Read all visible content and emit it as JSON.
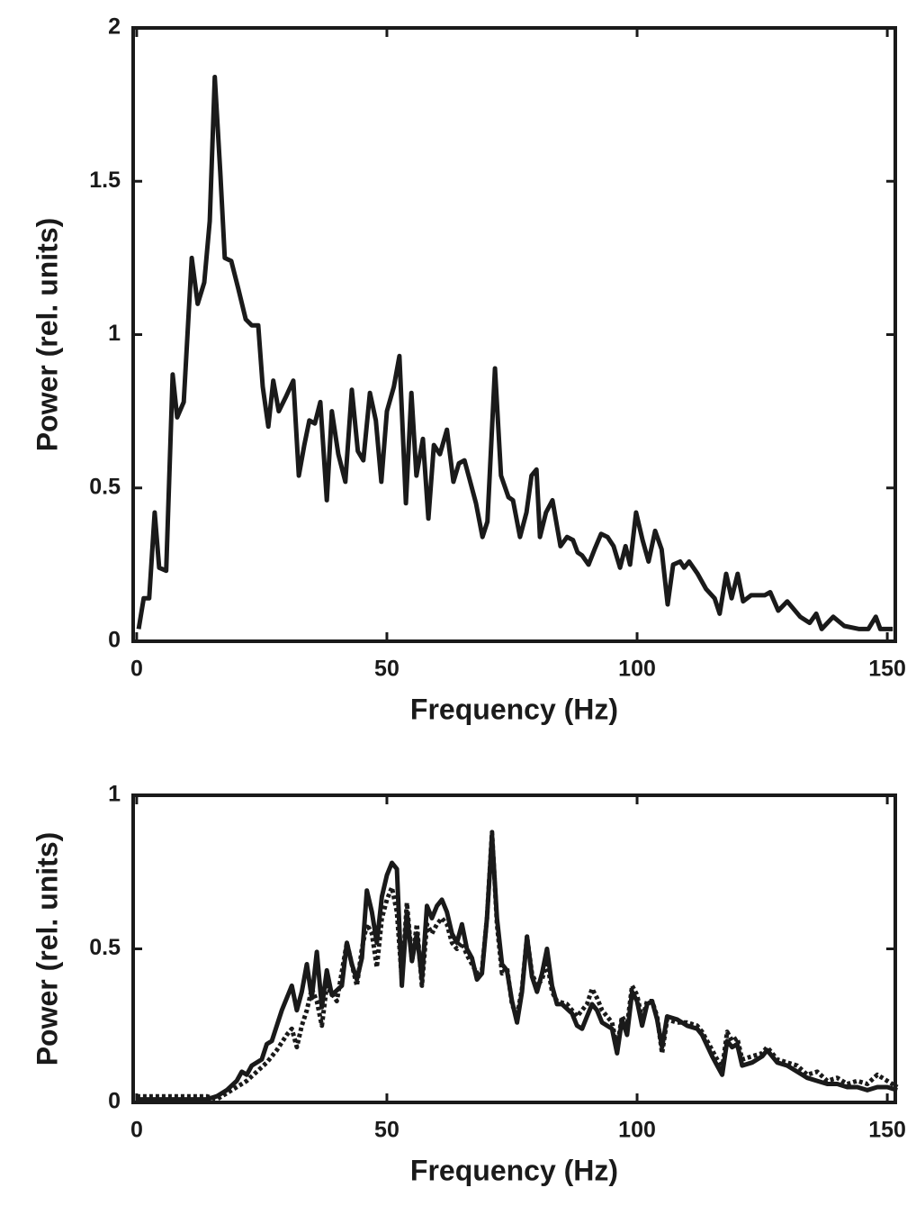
{
  "chart_data": [
    {
      "type": "line",
      "xlabel": "Frequency (Hz)",
      "ylabel": "Power (rel. units)",
      "xlim": [
        -0.7,
        151.6
      ],
      "ylim": [
        0,
        2
      ],
      "xticks": [
        0,
        50,
        100,
        150
      ],
      "yticks": [
        0,
        0.5,
        1,
        1.5,
        2
      ],
      "series": [
        {
          "color": "#1a1a1a",
          "style": "solid",
          "x": [
            0.4,
            1.4,
            2.5,
            3.6,
            4.5,
            5.9,
            7.2,
            8.1,
            9.4,
            11,
            12.2,
            13.5,
            14.6,
            15.6,
            16.7,
            17.6,
            18.9,
            20.3,
            21.8,
            23,
            24.3,
            25.2,
            26.3,
            27.3,
            28.4,
            29.9,
            31.3,
            32.4,
            33.5,
            34.5,
            35.6,
            36.7,
            38,
            39,
            40.3,
            41.7,
            43,
            44.2,
            45.3,
            46.6,
            47.8,
            48.9,
            50,
            51.4,
            52.5,
            53.8,
            54.9,
            55.9,
            57.2,
            58.3,
            59.4,
            60.6,
            62,
            63.3,
            64.4,
            65.5,
            66.5,
            67.8,
            69.1,
            70.1,
            71.6,
            72.8,
            74.3,
            75.2,
            76.6,
            77.9,
            78.9,
            79.9,
            80.6,
            81.8,
            83.1,
            84.7,
            86,
            87.2,
            88.1,
            89,
            90.3,
            91.5,
            92.8,
            94.1,
            95.3,
            96.6,
            97.7,
            98.6,
            99.8,
            101.1,
            102.3,
            103.6,
            104.9,
            106.1,
            107.2,
            108.6,
            109.4,
            110.4,
            112.1,
            113.8,
            115.5,
            116.5,
            117.8,
            118.9,
            120.1,
            121.2,
            122.8,
            125.5,
            126.6,
            128.2,
            130,
            132.6,
            134.5,
            135.8,
            136.9,
            139.2,
            141.4,
            144.4,
            146.2,
            147.7,
            148.6,
            151.1
          ],
          "values": [
            0.04,
            0.14,
            0.14,
            0.42,
            0.24,
            0.23,
            0.87,
            0.73,
            0.78,
            1.25,
            1.1,
            1.17,
            1.37,
            1.84,
            1.53,
            1.25,
            1.24,
            1.15,
            1.05,
            1.03,
            1.03,
            0.83,
            0.7,
            0.85,
            0.75,
            0.8,
            0.85,
            0.54,
            0.64,
            0.72,
            0.71,
            0.78,
            0.46,
            0.75,
            0.61,
            0.52,
            0.82,
            0.62,
            0.59,
            0.81,
            0.72,
            0.52,
            0.75,
            0.83,
            0.93,
            0.45,
            0.81,
            0.54,
            0.66,
            0.4,
            0.64,
            0.61,
            0.69,
            0.52,
            0.58,
            0.59,
            0.53,
            0.45,
            0.34,
            0.39,
            0.89,
            0.54,
            0.47,
            0.46,
            0.34,
            0.42,
            0.54,
            0.56,
            0.34,
            0.42,
            0.46,
            0.31,
            0.34,
            0.33,
            0.29,
            0.28,
            0.25,
            0.3,
            0.35,
            0.34,
            0.31,
            0.24,
            0.31,
            0.25,
            0.42,
            0.33,
            0.26,
            0.36,
            0.3,
            0.12,
            0.25,
            0.26,
            0.24,
            0.26,
            0.22,
            0.17,
            0.14,
            0.09,
            0.22,
            0.14,
            0.22,
            0.13,
            0.15,
            0.15,
            0.16,
            0.1,
            0.13,
            0.08,
            0.06,
            0.09,
            0.04,
            0.08,
            0.05,
            0.04,
            0.04,
            0.08,
            0.04,
            0.04
          ]
        }
      ]
    },
    {
      "type": "line",
      "xlabel": "Frequency (Hz)",
      "ylabel": "Power (rel. units)",
      "xlim": [
        -0.7,
        151.6
      ],
      "ylim": [
        0,
        1
      ],
      "xticks": [
        0,
        50,
        100,
        150
      ],
      "yticks": [
        0,
        0.5,
        1
      ],
      "series": [
        {
          "color": "#1a1a1a",
          "style": "solid",
          "x": [
            0,
            14,
            16,
            18,
            20,
            21,
            22,
            23,
            25,
            26,
            27,
            29,
            31,
            32,
            33,
            34,
            35,
            36,
            37,
            38,
            39,
            41,
            42,
            43,
            44,
            45,
            46,
            47,
            48,
            49,
            50,
            51,
            52,
            53,
            54,
            55,
            56,
            57,
            58,
            59,
            60,
            61,
            62,
            63,
            64,
            65,
            66,
            67,
            68,
            69,
            70,
            71,
            72,
            73,
            74,
            75,
            76,
            77,
            78,
            79,
            80,
            81,
            82,
            83,
            84,
            85,
            87,
            88,
            89,
            90,
            91,
            92,
            93,
            95,
            96,
            97,
            98,
            99,
            100,
            101,
            102,
            103,
            104,
            105,
            106,
            108,
            110,
            112,
            113,
            115,
            116,
            117,
            118,
            119,
            120,
            121,
            123,
            125,
            126,
            128,
            130,
            132,
            134,
            136,
            138,
            140,
            142,
            144,
            146,
            148,
            150,
            152
          ],
          "values": [
            0.01,
            0.01,
            0.02,
            0.04,
            0.07,
            0.1,
            0.09,
            0.12,
            0.14,
            0.19,
            0.2,
            0.3,
            0.38,
            0.3,
            0.36,
            0.45,
            0.34,
            0.49,
            0.31,
            0.43,
            0.35,
            0.38,
            0.52,
            0.45,
            0.4,
            0.47,
            0.69,
            0.62,
            0.52,
            0.67,
            0.74,
            0.78,
            0.76,
            0.38,
            0.62,
            0.46,
            0.55,
            0.4,
            0.64,
            0.6,
            0.64,
            0.66,
            0.62,
            0.55,
            0.52,
            0.58,
            0.5,
            0.47,
            0.4,
            0.42,
            0.6,
            0.87,
            0.6,
            0.45,
            0.43,
            0.33,
            0.26,
            0.36,
            0.54,
            0.41,
            0.36,
            0.42,
            0.5,
            0.38,
            0.32,
            0.32,
            0.29,
            0.25,
            0.24,
            0.28,
            0.32,
            0.3,
            0.26,
            0.24,
            0.16,
            0.27,
            0.22,
            0.36,
            0.33,
            0.25,
            0.32,
            0.33,
            0.27,
            0.18,
            0.28,
            0.27,
            0.25,
            0.24,
            0.22,
            0.15,
            0.12,
            0.09,
            0.2,
            0.18,
            0.19,
            0.12,
            0.13,
            0.15,
            0.17,
            0.13,
            0.12,
            0.1,
            0.08,
            0.07,
            0.06,
            0.06,
            0.05,
            0.05,
            0.04,
            0.05,
            0.05,
            0.04
          ]
        },
        {
          "color": "#1a1a1a",
          "style": "dotted",
          "x": [
            0,
            14,
            16,
            18,
            20,
            22,
            24,
            26,
            28,
            30,
            31,
            32,
            33,
            34,
            35,
            36,
            37,
            38,
            40,
            42,
            43,
            44,
            45,
            46,
            47,
            48,
            49,
            50,
            51,
            52,
            53,
            54,
            55,
            56,
            57,
            58,
            59,
            60,
            61,
            62,
            63,
            64,
            65,
            66,
            67,
            68,
            69,
            70,
            71,
            72,
            73,
            74,
            75,
            76,
            77,
            78,
            79,
            80,
            81,
            82,
            83,
            84,
            86,
            88,
            90,
            91,
            92,
            93,
            95,
            96,
            97,
            98,
            99,
            100,
            101,
            102,
            103,
            104,
            105,
            106,
            108,
            110,
            112,
            113,
            115,
            116,
            117,
            118,
            119,
            120,
            121,
            123,
            125,
            126,
            128,
            130,
            132,
            134,
            136,
            138,
            140,
            142,
            144,
            146,
            148,
            150,
            152
          ],
          "values": [
            0.02,
            0.02,
            0.01,
            0.03,
            0.05,
            0.07,
            0.1,
            0.13,
            0.17,
            0.22,
            0.24,
            0.18,
            0.25,
            0.3,
            0.37,
            0.33,
            0.25,
            0.38,
            0.33,
            0.52,
            0.45,
            0.38,
            0.5,
            0.58,
            0.55,
            0.44,
            0.6,
            0.66,
            0.7,
            0.62,
            0.4,
            0.65,
            0.46,
            0.58,
            0.38,
            0.58,
            0.55,
            0.58,
            0.6,
            0.58,
            0.52,
            0.5,
            0.52,
            0.48,
            0.45,
            0.42,
            0.43,
            0.6,
            0.88,
            0.58,
            0.42,
            0.44,
            0.32,
            0.28,
            0.37,
            0.54,
            0.42,
            0.38,
            0.4,
            0.46,
            0.36,
            0.33,
            0.32,
            0.28,
            0.32,
            0.37,
            0.34,
            0.3,
            0.26,
            0.18,
            0.28,
            0.25,
            0.38,
            0.35,
            0.27,
            0.33,
            0.33,
            0.28,
            0.16,
            0.27,
            0.26,
            0.26,
            0.25,
            0.23,
            0.17,
            0.14,
            0.11,
            0.23,
            0.2,
            0.21,
            0.14,
            0.15,
            0.16,
            0.18,
            0.14,
            0.13,
            0.12,
            0.09,
            0.1,
            0.07,
            0.08,
            0.06,
            0.07,
            0.06,
            0.09,
            0.07,
            0.05
          ]
        }
      ]
    }
  ]
}
